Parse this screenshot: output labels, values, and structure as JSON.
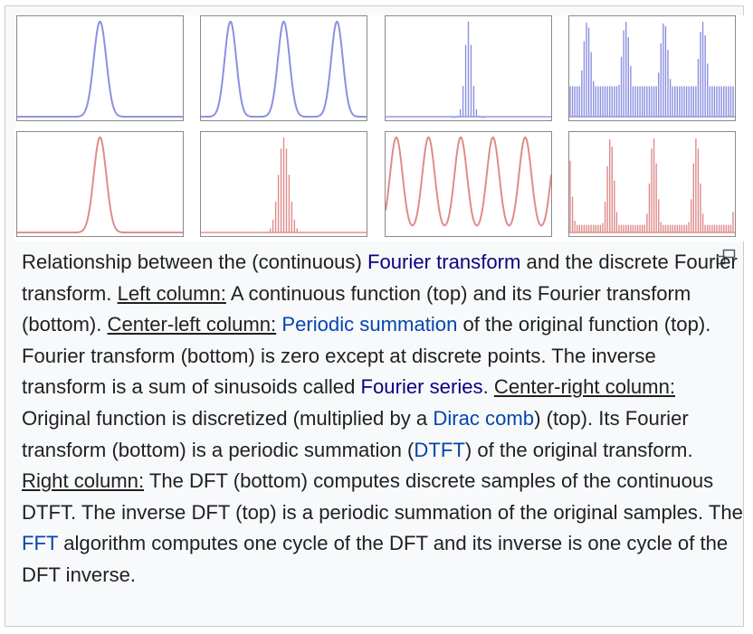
{
  "figure": {
    "colors": {
      "top": "#8a8fe0",
      "bottom": "#e08a8a",
      "frame": "#8a8a8a"
    },
    "panels": [
      {
        "name": "left-top",
        "row": "top",
        "column": "left",
        "shape": "single-peak"
      },
      {
        "name": "center-left-top",
        "row": "top",
        "column": "center-left",
        "shape": "periodic-peaks"
      },
      {
        "name": "center-right-top",
        "row": "top",
        "column": "center-right",
        "shape": "discrete-samples"
      },
      {
        "name": "right-top",
        "row": "top",
        "column": "right",
        "shape": "periodic-samples"
      },
      {
        "name": "left-bottom",
        "row": "bottom",
        "column": "left",
        "shape": "single-peak"
      },
      {
        "name": "center-left-bottom",
        "row": "bottom",
        "column": "center-left",
        "shape": "discrete-samples"
      },
      {
        "name": "center-right-bottom",
        "row": "bottom",
        "column": "center-right",
        "shape": "periodic-peaks"
      },
      {
        "name": "right-bottom",
        "row": "bottom",
        "column": "right",
        "shape": "periodic-samples"
      }
    ]
  },
  "magnify_icon": "magnify-clip-icon",
  "caption": {
    "s1_a": "Relationship between the (continuous) ",
    "link_fourier_transform": "Fourier transform",
    "s1_b": " and the discrete Fourier transform. ",
    "left_column": "Left column:",
    "s2": " A continuous function (top) and its Fourier transform (bottom). ",
    "center_left_column": "Center-left column:",
    "s3_a": " ",
    "link_periodic_summation": "Periodic summation",
    "s3_b": " of the original function (top). Fourier transform (bottom) is zero except at discrete points. The inverse transform is a sum of sinusoids called ",
    "link_fourier_series": "Fourier series",
    "s3_c": ". ",
    "center_right_column": "Center-right column:",
    "s4_a": " Original function is discretized (multiplied by a ",
    "link_dirac_comb": "Dirac comb",
    "s4_b": ") (top). Its Fourier transform (bottom) is a periodic summation (",
    "link_dtft": "DTFT",
    "s4_c": ") of the original transform. ",
    "right_column": "Right column:",
    "s5_a": " The DFT (bottom) computes discrete samples of the continuous DTFT. The inverse DFT (top) is a periodic summation of the original samples. The ",
    "link_fft": "FFT",
    "s5_b": " algorithm computes one cycle of the DFT and its inverse is one cycle of the DFT inverse."
  }
}
